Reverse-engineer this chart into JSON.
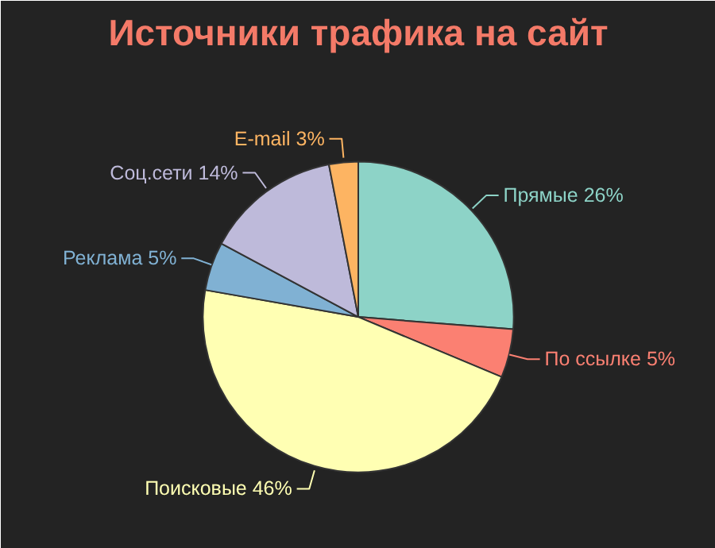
{
  "chart_data": {
    "type": "pie",
    "title": "Источники трафика на сайт",
    "categories": [
      "Прямые",
      "По ссылке",
      "Поисковые",
      "Реклама",
      "Соц.сети",
      "E-mail"
    ],
    "values": [
      26,
      5,
      46,
      5,
      14,
      3
    ],
    "colors": [
      "#8dd3c7",
      "#fb8072",
      "#ffffb3",
      "#80b1d3",
      "#bebada",
      "#fdb462"
    ],
    "value_labels": [
      "26%",
      "5%",
      "46%",
      "5%",
      "14%",
      "3%"
    ]
  }
}
